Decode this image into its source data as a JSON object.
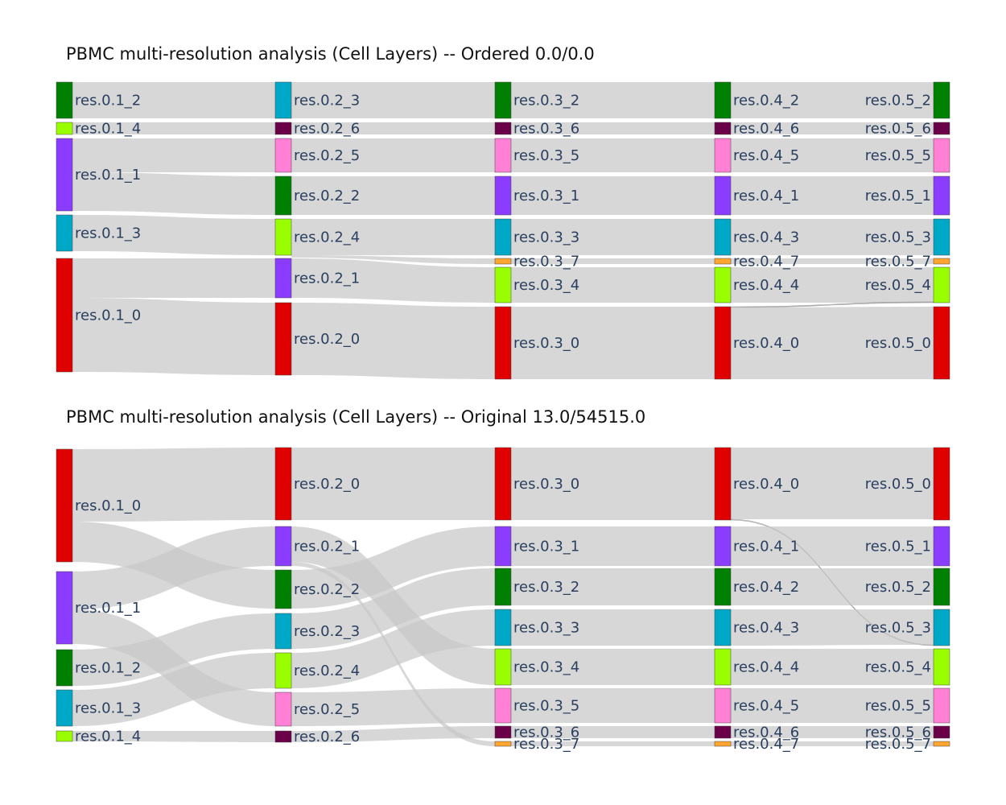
{
  "panels": [
    {
      "title": "PBMC multi-resolution analysis (Cell Layers) -- Ordered 0.0/0.0",
      "layers": [
        [
          {
            "label": "res.0.1_2",
            "color": "#008000"
          },
          {
            "label": "res.0.1_4",
            "color": "#99ff00"
          },
          {
            "label": "res.0.1_1",
            "color": "#8b3dff"
          },
          {
            "label": "res.0.1_3",
            "color": "#00a8c8"
          },
          {
            "label": "res.0.1_0",
            "color": "#e00000"
          }
        ],
        [
          {
            "label": "res.0.2_3",
            "color": "#00a8c8"
          },
          {
            "label": "res.0.2_6",
            "color": "#6a0047"
          },
          {
            "label": "res.0.2_5",
            "color": "#ff80d5"
          },
          {
            "label": "res.0.2_2",
            "color": "#008000"
          },
          {
            "label": "res.0.2_4",
            "color": "#99ff00"
          },
          {
            "label": "res.0.2_1",
            "color": "#8b3dff"
          },
          {
            "label": "res.0.2_0",
            "color": "#e00000"
          }
        ],
        [
          {
            "label": "res.0.3_2",
            "color": "#008000"
          },
          {
            "label": "res.0.3_6",
            "color": "#6a0047"
          },
          {
            "label": "res.0.3_5",
            "color": "#ff80d5"
          },
          {
            "label": "res.0.3_1",
            "color": "#8b3dff"
          },
          {
            "label": "res.0.3_3",
            "color": "#00a8c8"
          },
          {
            "label": "res.0.3_7",
            "color": "#ffa530"
          },
          {
            "label": "res.0.3_4",
            "color": "#99ff00"
          },
          {
            "label": "res.0.3_0",
            "color": "#e00000"
          }
        ],
        [
          {
            "label": "res.0.4_2",
            "color": "#008000"
          },
          {
            "label": "res.0.4_6",
            "color": "#6a0047"
          },
          {
            "label": "res.0.4_5",
            "color": "#ff80d5"
          },
          {
            "label": "res.0.4_1",
            "color": "#8b3dff"
          },
          {
            "label": "res.0.4_3",
            "color": "#00a8c8"
          },
          {
            "label": "res.0.4_7",
            "color": "#ffa530"
          },
          {
            "label": "res.0.4_4",
            "color": "#99ff00"
          },
          {
            "label": "res.0.4_0",
            "color": "#e00000"
          }
        ],
        [
          {
            "label": "res.0.5_2",
            "color": "#008000"
          },
          {
            "label": "res.0.5_6",
            "color": "#6a0047"
          },
          {
            "label": "res.0.5_5",
            "color": "#ff80d5"
          },
          {
            "label": "res.0.5_1",
            "color": "#8b3dff"
          },
          {
            "label": "res.0.5_3",
            "color": "#00a8c8"
          },
          {
            "label": "res.0.5_7",
            "color": "#ffa530"
          },
          {
            "label": "res.0.5_4",
            "color": "#99ff00"
          },
          {
            "label": "res.0.5_0",
            "color": "#e00000"
          }
        ]
      ]
    },
    {
      "title": "PBMC multi-resolution analysis (Cell Layers) -- Original 13.0/54515.0",
      "layers": [
        [
          {
            "label": "res.0.1_0",
            "color": "#e00000"
          },
          {
            "label": "res.0.1_1",
            "color": "#8b3dff"
          },
          {
            "label": "res.0.1_2",
            "color": "#008000"
          },
          {
            "label": "res.0.1_3",
            "color": "#00a8c8"
          },
          {
            "label": "res.0.1_4",
            "color": "#99ff00"
          }
        ],
        [
          {
            "label": "res.0.2_0",
            "color": "#e00000"
          },
          {
            "label": "res.0.2_1",
            "color": "#8b3dff"
          },
          {
            "label": "res.0.2_2",
            "color": "#008000"
          },
          {
            "label": "res.0.2_3",
            "color": "#00a8c8"
          },
          {
            "label": "res.0.2_4",
            "color": "#99ff00"
          },
          {
            "label": "res.0.2_5",
            "color": "#ff80d5"
          },
          {
            "label": "res.0.2_6",
            "color": "#6a0047"
          }
        ],
        [
          {
            "label": "res.0.3_0",
            "color": "#e00000"
          },
          {
            "label": "res.0.3_1",
            "color": "#8b3dff"
          },
          {
            "label": "res.0.3_2",
            "color": "#008000"
          },
          {
            "label": "res.0.3_3",
            "color": "#00a8c8"
          },
          {
            "label": "res.0.3_4",
            "color": "#99ff00"
          },
          {
            "label": "res.0.3_5",
            "color": "#ff80d5"
          },
          {
            "label": "res.0.3_6",
            "color": "#6a0047"
          },
          {
            "label": "res.0.3_7",
            "color": "#ffa530"
          }
        ],
        [
          {
            "label": "res.0.4_0",
            "color": "#e00000"
          },
          {
            "label": "res.0.4_1",
            "color": "#8b3dff"
          },
          {
            "label": "res.0.4_2",
            "color": "#008000"
          },
          {
            "label": "res.0.4_3",
            "color": "#00a8c8"
          },
          {
            "label": "res.0.4_4",
            "color": "#99ff00"
          },
          {
            "label": "res.0.4_5",
            "color": "#ff80d5"
          },
          {
            "label": "res.0.4_6",
            "color": "#6a0047"
          },
          {
            "label": "res.0.4_7",
            "color": "#ffa530"
          }
        ],
        [
          {
            "label": "res.0.5_0",
            "color": "#e00000"
          },
          {
            "label": "res.0.5_1",
            "color": "#8b3dff"
          },
          {
            "label": "res.0.5_2",
            "color": "#008000"
          },
          {
            "label": "res.0.5_3",
            "color": "#00a8c8"
          },
          {
            "label": "res.0.5_4",
            "color": "#99ff00"
          },
          {
            "label": "res.0.5_5",
            "color": "#ff80d5"
          },
          {
            "label": "res.0.5_6",
            "color": "#6a0047"
          },
          {
            "label": "res.0.5_7",
            "color": "#ffa530"
          }
        ]
      ]
    }
  ],
  "link_color": "#c8c8c8"
}
